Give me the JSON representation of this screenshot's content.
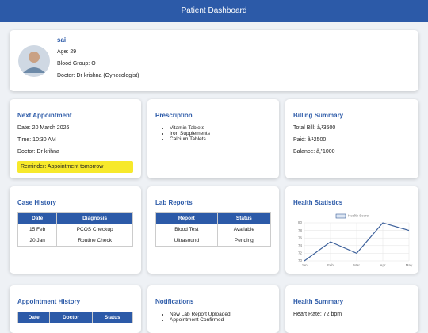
{
  "header": {
    "title": "Patient Dashboard"
  },
  "profile": {
    "name": "sai",
    "age": "Age: 29",
    "blood_group": "Blood Group: O+",
    "doctor": "Doctor: Dr krishna (Gynecologist)"
  },
  "next_appointment": {
    "title": "Next Appointment",
    "date": "Date: 20 March 2026",
    "time": "Time: 10:30 AM",
    "doctor": "Doctor: Dr krihna",
    "reminder": "Reminder: Appointment tomorrow"
  },
  "prescription": {
    "title": "Prescription",
    "items": [
      "Vitamin Tablets",
      "Iron Supplements",
      "Calcium Tablets"
    ]
  },
  "billing": {
    "title": "Billing Summary",
    "total": "Total Bill: â‚¹3500",
    "paid": "Paid: â‚¹2500",
    "balance": "Balance: â‚¹1000"
  },
  "case_history": {
    "title": "Case History",
    "columns": [
      "Date",
      "Diagnosis"
    ],
    "rows": [
      [
        "15 Feb",
        "PCOS Checkup"
      ],
      [
        "20 Jan",
        "Routine Check"
      ]
    ]
  },
  "lab_reports": {
    "title": "Lab Reports",
    "columns": [
      "Report",
      "Status"
    ],
    "rows": [
      [
        "Blood Test",
        "Available"
      ],
      [
        "Ultrasound",
        "Pending"
      ]
    ]
  },
  "health_statistics": {
    "title": "Health Statistics",
    "chart": {
      "type": "line",
      "categories": [
        "Jan",
        "Feb",
        "Mar",
        "Apr",
        "May"
      ],
      "series": [
        {
          "name": "Health Score",
          "color": "#3b5f9a",
          "values": [
            70,
            75,
            72,
            80,
            78
          ]
        }
      ],
      "ylim": [
        70,
        80
      ],
      "yticks": [
        70,
        72,
        74,
        76,
        78,
        80
      ],
      "grid": true
    }
  },
  "appointment_history": {
    "title": "Appointment History",
    "columns": [
      "Date",
      "Doctor",
      "Status"
    ]
  },
  "notifications": {
    "title": "Notifications",
    "items": [
      "New Lab Report Uploaded",
      "Appointment Confirmed"
    ]
  },
  "health_summary": {
    "title": "Health Summary",
    "heart_rate": "Heart Rate: 72 bpm"
  }
}
